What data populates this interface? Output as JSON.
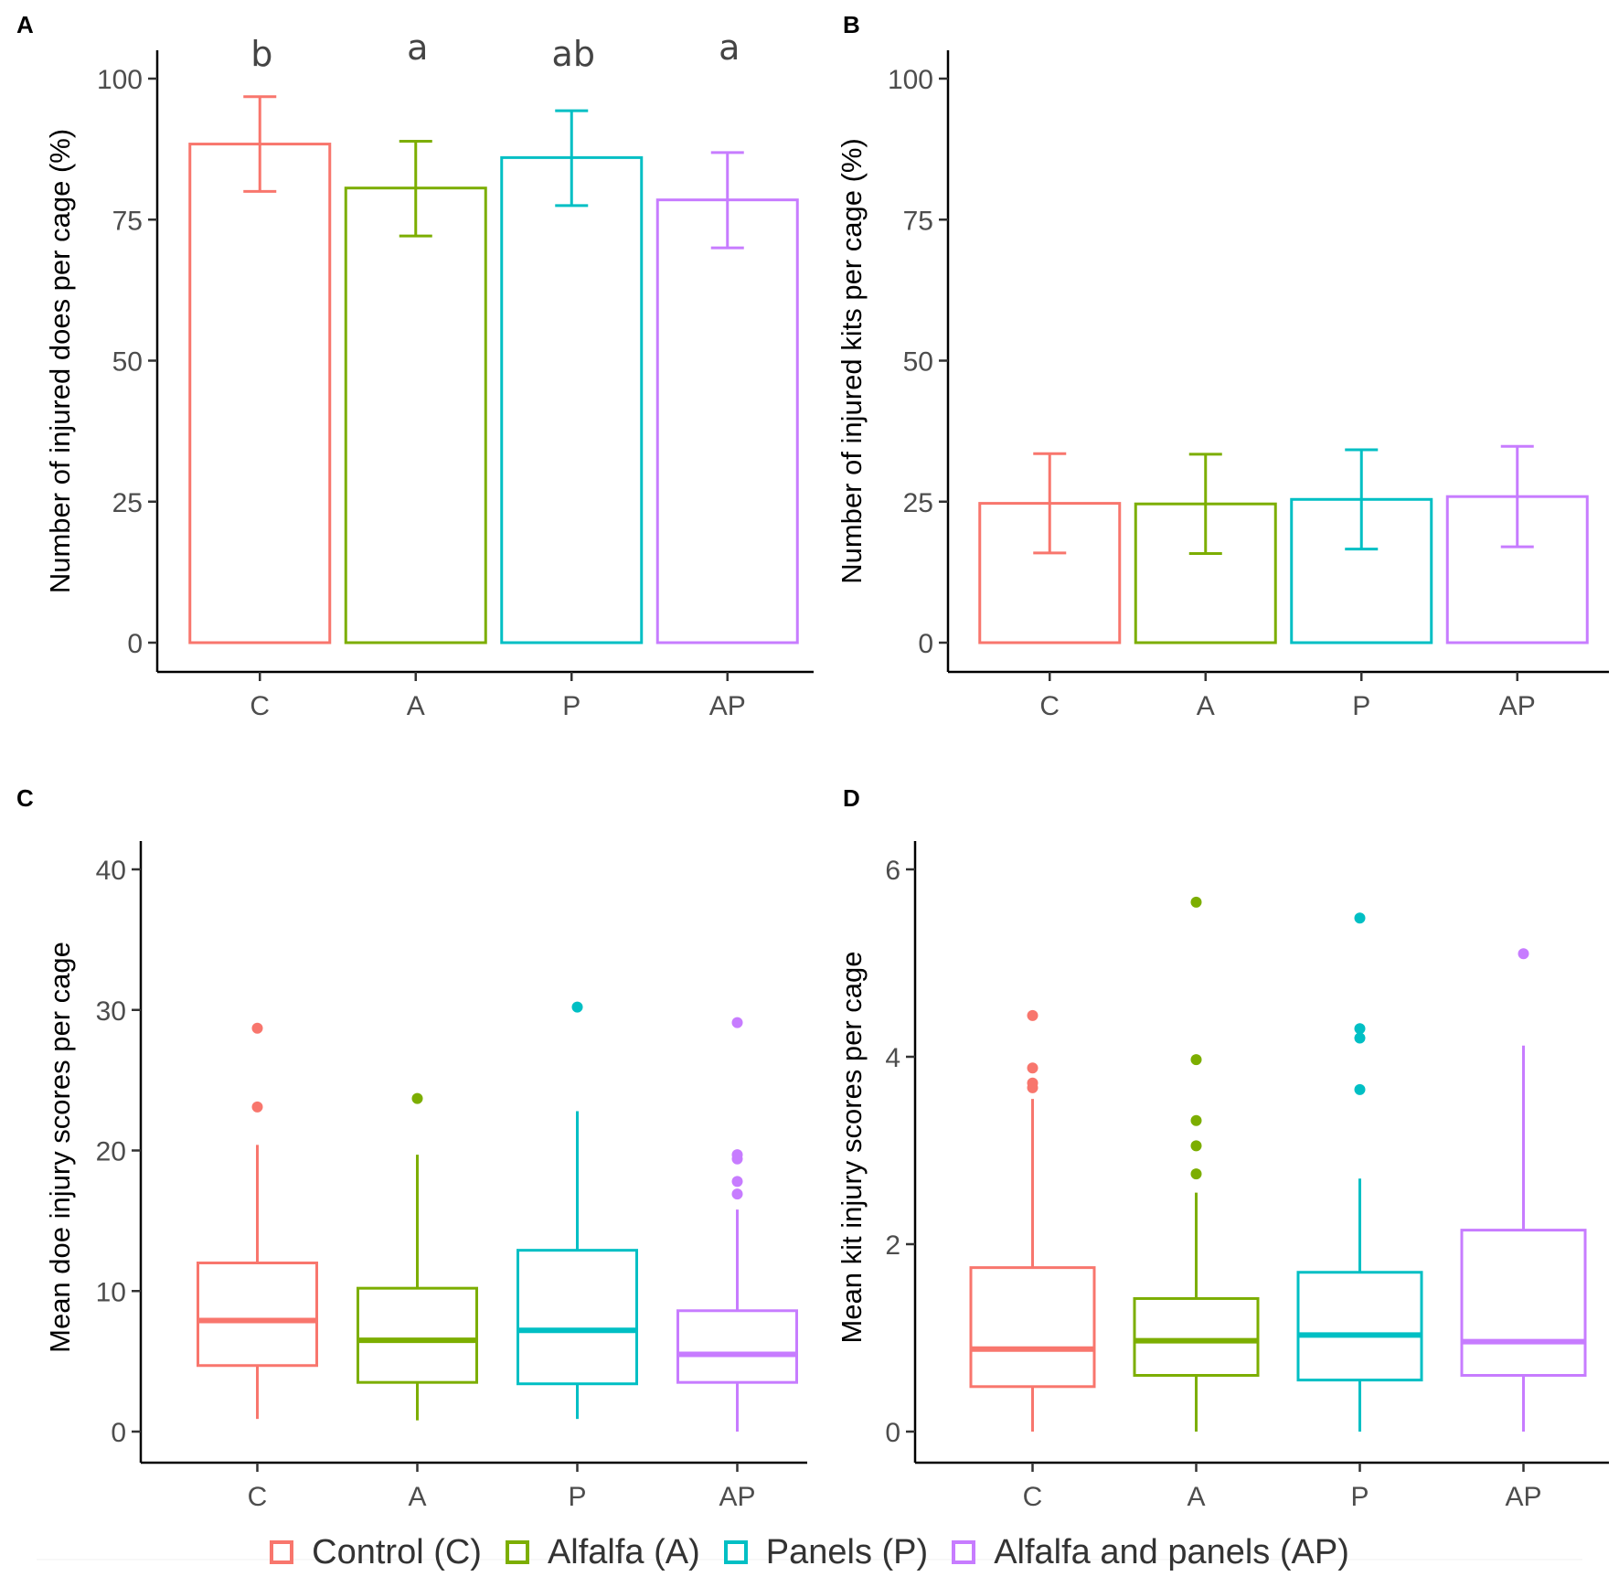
{
  "colors": {
    "C": "#F8766D",
    "A": "#7CAE00",
    "P": "#00BFC4",
    "AP": "#C77CFF",
    "axis": "#000000",
    "tick": "#4d4d4d"
  },
  "legend": [
    {
      "key": "C",
      "label": "Control (C)"
    },
    {
      "key": "A",
      "label": "Alfalfa (A)"
    },
    {
      "key": "P",
      "label": "Panels (P)"
    },
    {
      "key": "AP",
      "label": "Alfalfa and panels (AP)"
    }
  ],
  "chart_data": [
    {
      "panel": "A",
      "type": "bar",
      "ylabel": "Number of injured does per cage (%)",
      "categories": [
        "C",
        "A",
        "P",
        "AP"
      ],
      "values": [
        88.4,
        80.6,
        86.0,
        78.5
      ],
      "error_low": [
        80.0,
        72.1,
        77.5,
        70.0
      ],
      "error_high": [
        96.8,
        88.9,
        94.3,
        86.9
      ],
      "significance": [
        "b",
        "a",
        "ab",
        "a"
      ],
      "ylim": [
        0,
        105
      ],
      "yticks": [
        0,
        25,
        50,
        75,
        100
      ]
    },
    {
      "panel": "B",
      "type": "bar",
      "ylabel": "Number of injured kits per cage (%)",
      "categories": [
        "C",
        "A",
        "P",
        "AP"
      ],
      "values": [
        24.7,
        24.6,
        25.4,
        25.9
      ],
      "error_low": [
        15.9,
        15.8,
        16.6,
        17.0
      ],
      "error_high": [
        33.5,
        33.4,
        34.2,
        34.8
      ],
      "ylim": [
        0,
        105
      ],
      "yticks": [
        0,
        25,
        50,
        75,
        100
      ]
    },
    {
      "panel": "C",
      "type": "box",
      "ylabel": "Mean doe injury scores per cage",
      "categories": [
        "C",
        "A",
        "P",
        "AP"
      ],
      "boxes": [
        {
          "lower_whisker": 0.9,
          "q1": 4.7,
          "median": 7.9,
          "q3": 12.0,
          "upper_whisker": 20.4,
          "outliers": [
            23.1,
            28.7
          ]
        },
        {
          "lower_whisker": 0.8,
          "q1": 3.5,
          "median": 6.5,
          "q3": 10.2,
          "upper_whisker": 19.7,
          "outliers": [
            23.7
          ]
        },
        {
          "lower_whisker": 0.9,
          "q1": 3.4,
          "median": 7.2,
          "q3": 12.9,
          "upper_whisker": 22.8,
          "outliers": [
            30.2
          ]
        },
        {
          "lower_whisker": 0.0,
          "q1": 3.5,
          "median": 5.5,
          "q3": 8.6,
          "upper_whisker": 15.8,
          "outliers": [
            16.9,
            17.8,
            19.4,
            19.7,
            29.1
          ]
        }
      ],
      "ylim": [
        -2,
        42
      ],
      "yticks": [
        0,
        10,
        20,
        30,
        40
      ]
    },
    {
      "panel": "D",
      "type": "box",
      "ylabel": "Mean kit injury scores per cage",
      "categories": [
        "C",
        "A",
        "P",
        "AP"
      ],
      "boxes": [
        {
          "lower_whisker": 0.0,
          "q1": 0.48,
          "median": 0.88,
          "q3": 1.75,
          "upper_whisker": 3.55,
          "outliers": [
            3.67,
            3.72,
            3.88,
            4.44
          ]
        },
        {
          "lower_whisker": 0.0,
          "q1": 0.6,
          "median": 0.97,
          "q3": 1.42,
          "upper_whisker": 2.55,
          "outliers": [
            2.75,
            3.05,
            3.32,
            3.97,
            5.65
          ]
        },
        {
          "lower_whisker": 0.0,
          "q1": 0.55,
          "median": 1.03,
          "q3": 1.7,
          "upper_whisker": 2.7,
          "outliers": [
            3.65,
            4.2,
            4.3,
            5.48
          ]
        },
        {
          "lower_whisker": 0.0,
          "q1": 0.6,
          "median": 0.96,
          "q3": 2.15,
          "upper_whisker": 4.12,
          "outliers": [
            5.1
          ]
        }
      ],
      "ylim": [
        -0.3,
        6.3
      ],
      "yticks": [
        0,
        2,
        4,
        6
      ]
    }
  ]
}
